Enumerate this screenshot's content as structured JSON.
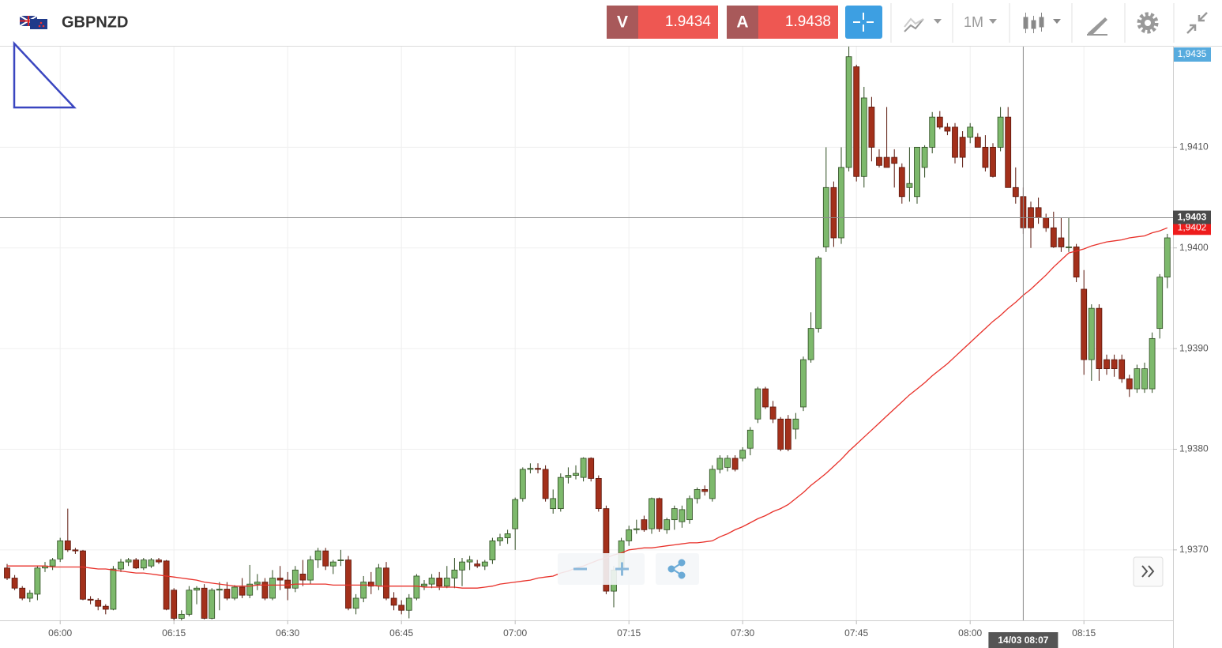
{
  "header": {
    "symbol": "GBPNZD",
    "sell": {
      "label": "V",
      "price": "1.9434"
    },
    "buy": {
      "label": "A",
      "price": "1.9438"
    },
    "timeframe": "1M"
  },
  "chart_data": {
    "type": "candlestick",
    "categories": [
      null,
      null,
      null,
      null,
      null,
      null,
      null,
      "06:00",
      null,
      null,
      null,
      null,
      null,
      null,
      null,
      null,
      null,
      null,
      null,
      null,
      null,
      null,
      "06:15",
      null,
      null,
      null,
      null,
      null,
      null,
      null,
      null,
      null,
      null,
      null,
      null,
      null,
      null,
      "06:30",
      null,
      null,
      null,
      null,
      null,
      null,
      null,
      null,
      null,
      null,
      null,
      null,
      null,
      null,
      "06:45",
      null,
      null,
      null,
      null,
      null,
      null,
      null,
      null,
      null,
      null,
      null,
      null,
      null,
      null,
      "07:00",
      null,
      null,
      null,
      null,
      null,
      null,
      null,
      null,
      null,
      null,
      null,
      null,
      null,
      null,
      "07:15",
      null,
      null,
      null,
      null,
      null,
      null,
      null,
      null,
      null,
      null,
      null,
      null,
      null,
      null,
      "07:30",
      null,
      null,
      null,
      null,
      null,
      null,
      null,
      null,
      null,
      null,
      null,
      null,
      null,
      null,
      "07:45",
      null,
      null,
      null,
      null,
      null,
      null,
      null,
      null,
      null,
      null,
      null,
      null,
      null,
      null,
      "08:00",
      null,
      null,
      null,
      null,
      null,
      null,
      null,
      null,
      null,
      null,
      null,
      null,
      null,
      null,
      "08:15",
      null,
      null,
      null,
      null,
      null,
      null,
      null,
      null,
      null,
      null,
      null
    ],
    "open": [
      1.93682,
      1.93672,
      1.93662,
      1.93652,
      1.93656,
      1.93682,
      1.93684,
      1.93691,
      1.93709,
      1.937,
      1.93699,
      1.93651,
      1.9365,
      1.93644,
      1.93641,
      1.93681,
      1.93688,
      1.9369,
      1.93682,
      1.93684,
      1.9369,
      1.93689,
      1.9366,
      1.93632,
      1.93636,
      1.9366,
      1.93662,
      1.93632,
      1.9366,
      1.93661,
      1.93652,
      1.93663,
      1.93655,
      1.93666,
      1.93668,
      1.93652,
      1.93672,
      1.9367,
      1.93662,
      1.93676,
      1.9367,
      1.9369,
      1.93699,
      1.93684,
      1.9369,
      1.9369,
      1.93642,
      1.93652,
      1.93668,
      1.93664,
      1.93682,
      1.93652,
      1.93645,
      1.9364,
      1.93652,
      1.93664,
      1.93666,
      1.93672,
      1.93664,
      1.93672,
      1.9368,
      1.93688,
      1.93686,
      1.93684,
      1.9369,
      1.93709,
      1.93712,
      1.93721,
      1.93751,
      1.9378,
      1.93781,
      1.9378,
      1.93741,
      1.93741,
      1.93772,
      1.93774,
      1.93772,
      1.93791,
      1.93771,
      1.93741,
      1.93659,
      1.9368,
      1.93709,
      1.9372,
      1.9373,
      1.93721,
      1.93751,
      1.9372,
      1.9373,
      1.93728,
      1.9373,
      1.93751,
      1.9376,
      1.93751,
      1.9378,
      1.93782,
      1.93791,
      1.93791,
      1.93801,
      1.9383,
      1.9386,
      1.93842,
      1.9383,
      1.9383,
      1.9382,
      1.93842,
      1.93889,
      1.9392,
      1.94001,
      1.9406,
      1.9401,
      1.9408,
      1.9418,
      1.94071,
      1.9414,
      1.9409,
      1.9409,
      1.9409,
      1.9408,
      1.9406,
      1.94051,
      1.9408,
      1.941,
      1.9413,
      1.9412,
      1.9412,
      1.9411,
      1.9411,
      1.9411,
      1.941,
      1.941,
      1.941,
      1.9413,
      1.9406,
      1.94051,
      1.9404,
      1.9404,
      1.9403,
      1.9402,
      1.9401,
      1.94001,
      1.94001,
      1.93959,
      1.93889,
      1.9394,
      1.93889,
      1.93889,
      1.93889,
      1.9387,
      1.9386,
      1.9386,
      1.9386,
      1.9392,
      1.93971
    ],
    "high": [
      1.93686,
      1.93675,
      1.93664,
      1.9366,
      1.93684,
      1.93688,
      1.93692,
      1.93712,
      1.93741,
      1.93702,
      1.937,
      1.93654,
      1.93652,
      1.93646,
      1.93684,
      1.93691,
      1.93692,
      1.93692,
      1.93692,
      1.93692,
      1.93692,
      1.9369,
      1.93662,
      1.9364,
      1.93664,
      1.93664,
      1.93666,
      1.93662,
      1.93668,
      1.93668,
      1.93665,
      1.93672,
      1.93685,
      1.93676,
      1.93672,
      1.9368,
      1.93684,
      1.93678,
      1.93684,
      1.9369,
      1.93694,
      1.93702,
      1.93702,
      1.9369,
      1.937,
      1.93694,
      1.93656,
      1.93674,
      1.93678,
      1.93686,
      1.93688,
      1.93658,
      1.9365,
      1.93656,
      1.93676,
      1.9367,
      1.93676,
      1.93678,
      1.93684,
      1.93692,
      1.93692,
      1.93694,
      1.9369,
      1.9369,
      1.93712,
      1.93716,
      1.9372,
      1.93752,
      1.93782,
      1.93786,
      1.93786,
      1.93784,
      1.9376,
      1.93776,
      1.93782,
      1.93784,
      1.93792,
      1.93792,
      1.93774,
      1.93744,
      1.93684,
      1.93712,
      1.93724,
      1.9373,
      1.93734,
      1.93752,
      1.93752,
      1.93732,
      1.93744,
      1.93744,
      1.93754,
      1.93762,
      1.93764,
      1.93784,
      1.93794,
      1.93794,
      1.93794,
      1.93802,
      1.93822,
      1.93862,
      1.93862,
      1.93848,
      1.93832,
      1.93834,
      1.93836,
      1.93892,
      1.93936,
      1.93992,
      1.941,
      1.94066,
      1.941,
      1.942,
      1.94182,
      1.9416,
      1.9415,
      1.94098,
      1.9414,
      1.94098,
      1.94084,
      1.941,
      1.941,
      1.94102,
      1.94135,
      1.94136,
      1.94124,
      1.94124,
      1.94116,
      1.94124,
      1.94114,
      1.94112,
      1.94104,
      1.9414,
      1.9414,
      1.9408,
      1.9406,
      1.94046,
      1.9405,
      1.94034,
      1.94036,
      1.9403,
      1.9403,
      1.94004,
      1.93978,
      1.93944,
      1.93944,
      1.93894,
      1.93894,
      1.93894,
      1.93874,
      1.93884,
      1.93886,
      1.93916,
      1.93974,
      1.94014
    ],
    "low": [
      1.9367,
      1.9366,
      1.9365,
      1.93648,
      1.9365,
      1.93678,
      1.9368,
      1.93688,
      1.93698,
      1.93696,
      1.9365,
      1.93646,
      1.9364,
      1.93636,
      1.9364,
      1.93678,
      1.93684,
      1.93681,
      1.9368,
      1.93682,
      1.93686,
      1.9364,
      1.9363,
      1.9363,
      1.93634,
      1.93646,
      1.93631,
      1.93631,
      1.9364,
      1.9365,
      1.9365,
      1.93652,
      1.93652,
      1.9366,
      1.9365,
      1.9365,
      1.9366,
      1.9365,
      1.93658,
      1.93664,
      1.93666,
      1.93682,
      1.9368,
      1.93676,
      1.93684,
      1.9364,
      1.93636,
      1.93648,
      1.93656,
      1.9366,
      1.9365,
      1.9364,
      1.93636,
      1.93632,
      1.9365,
      1.9366,
      1.93662,
      1.9366,
      1.93662,
      1.93662,
      1.93664,
      1.9368,
      1.93682,
      1.9368,
      1.93686,
      1.93704,
      1.93706,
      1.937,
      1.93748,
      1.93776,
      1.93776,
      1.93748,
      1.93736,
      1.93738,
      1.93766,
      1.9377,
      1.93768,
      1.93768,
      1.93738,
      1.93656,
      1.93643,
      1.93676,
      1.93704,
      1.93716,
      1.93718,
      1.93716,
      1.93718,
      1.93716,
      1.9372,
      1.93722,
      1.93726,
      1.93746,
      1.93754,
      1.93748,
      1.93776,
      1.93778,
      1.93778,
      1.93788,
      1.93794,
      1.93826,
      1.9384,
      1.93826,
      1.93798,
      1.93798,
      1.9381,
      1.93838,
      1.93886,
      1.93916,
      1.93996,
      1.94001,
      1.94004,
      1.94076,
      1.94066,
      1.9406,
      1.94086,
      1.9408,
      1.9408,
      1.9406,
      1.94044,
      1.94046,
      1.94044,
      1.9407,
      1.94094,
      1.94118,
      1.94112,
      1.94084,
      1.9408,
      1.94104,
      1.941,
      1.94076,
      1.9407,
      1.94096,
      1.9406,
      1.94044,
      1.94014,
      1.94,
      1.94024,
      1.94016,
      1.94,
      1.93996,
      1.93996,
      1.93966,
      1.93874,
      1.93868,
      1.93868,
      1.93874,
      1.93872,
      1.93866,
      1.93852,
      1.93856,
      1.93856,
      1.93856,
      1.9391,
      1.9396
    ],
    "close": [
      1.93672,
      1.93662,
      1.93652,
      1.93657,
      1.93682,
      1.93684,
      1.9369,
      1.93709,
      1.937,
      1.93699,
      1.93651,
      1.9365,
      1.93644,
      1.93641,
      1.93681,
      1.93688,
      1.9369,
      1.93682,
      1.9369,
      1.9369,
      1.93688,
      1.93641,
      1.93632,
      1.93636,
      1.9366,
      1.93662,
      1.93632,
      1.9366,
      1.93661,
      1.93652,
      1.93663,
      1.93655,
      1.93666,
      1.93668,
      1.93652,
      1.93672,
      1.9367,
      1.93662,
      1.9368,
      1.9367,
      1.9369,
      1.93699,
      1.93684,
      1.93688,
      1.9369,
      1.93642,
      1.93652,
      1.93668,
      1.93664,
      1.93682,
      1.93652,
      1.93645,
      1.9364,
      1.93652,
      1.93674,
      1.93666,
      1.93672,
      1.93664,
      1.93672,
      1.9368,
      1.93688,
      1.9369,
      1.93684,
      1.93688,
      1.93709,
      1.93712,
      1.93716,
      1.9375,
      1.9378,
      1.93781,
      1.9378,
      1.93751,
      1.93751,
      1.93772,
      1.93774,
      1.93776,
      1.93791,
      1.93771,
      1.93741,
      1.93659,
      1.9368,
      1.93709,
      1.9372,
      1.93721,
      1.9372,
      1.93751,
      1.93721,
      1.9373,
      1.93741,
      1.9374,
      1.93751,
      1.9376,
      1.93758,
      1.9378,
      1.93791,
      1.93791,
      1.9378,
      1.93799,
      1.93819,
      1.9386,
      1.93842,
      1.9383,
      1.938,
      1.938,
      1.9383,
      1.93889,
      1.9392,
      1.9399,
      1.9406,
      1.9401,
      1.9408,
      1.9419,
      1.94071,
      1.94149,
      1.941,
      1.94082,
      1.9408,
      1.94084,
      1.94051,
      1.94064,
      1.941,
      1.941,
      1.9413,
      1.9412,
      1.94116,
      1.9409,
      1.9409,
      1.9412,
      1.941,
      1.9408,
      1.94071,
      1.9413,
      1.9406,
      1.94051,
      1.9402,
      1.9402,
      1.9403,
      1.9402,
      1.94001,
      1.94001,
      1.94001,
      1.93971,
      1.93889,
      1.9394,
      1.9388,
      1.9388,
      1.9388,
      1.9387,
      1.9386,
      1.9388,
      1.9388,
      1.9391,
      1.93971,
      1.9401
    ],
    "up_color": "#7db96c",
    "down_color": "#a3301b",
    "ma": {
      "color": "#e8312a",
      "values": [
        1.93684,
        1.93684,
        1.93684,
        1.93684,
        1.93684,
        1.93684,
        1.93683,
        1.93683,
        1.93683,
        1.93683,
        1.93683,
        1.93682,
        1.93681,
        1.93681,
        1.9368,
        1.93679,
        1.93678,
        1.93677,
        1.93677,
        1.93676,
        1.93675,
        1.93674,
        1.93673,
        1.93672,
        1.93671,
        1.9367,
        1.93668,
        1.93667,
        1.93666,
        1.93665,
        1.93664,
        1.93664,
        1.93664,
        1.93665,
        1.93665,
        1.93665,
        1.93665,
        1.93665,
        1.93666,
        1.93666,
        1.93666,
        1.93666,
        1.93666,
        1.93665,
        1.93665,
        1.93665,
        1.93665,
        1.93665,
        1.93665,
        1.93664,
        1.93664,
        1.93664,
        1.93664,
        1.93664,
        1.93664,
        1.93663,
        1.93663,
        1.93663,
        1.93663,
        1.93663,
        1.93662,
        1.93662,
        1.93662,
        1.93663,
        1.93664,
        1.93666,
        1.93667,
        1.93668,
        1.93669,
        1.9367,
        1.93672,
        1.93673,
        1.93674,
        1.93677,
        1.93679,
        1.93682,
        1.93684,
        1.93687,
        1.9369,
        1.93692,
        1.93695,
        1.93697,
        1.937,
        1.93701,
        1.93702,
        1.93702,
        1.93703,
        1.93704,
        1.93705,
        1.93706,
        1.93707,
        1.93707,
        1.93708,
        1.93709,
        1.93713,
        1.93716,
        1.9372,
        1.93723,
        1.93727,
        1.93731,
        1.93734,
        1.93738,
        1.93741,
        1.93745,
        1.93751,
        1.93757,
        1.93764,
        1.9377,
        1.93776,
        1.93783,
        1.9379,
        1.93798,
        1.93805,
        1.93812,
        1.93819,
        1.93826,
        1.93833,
        1.9384,
        1.93847,
        1.93854,
        1.9386,
        1.93866,
        1.93873,
        1.93879,
        1.93885,
        1.93892,
        1.93899,
        1.93906,
        1.93913,
        1.9392,
        1.93927,
        1.93933,
        1.9394,
        1.93946,
        1.93953,
        1.93959,
        1.93966,
        1.93973,
        1.93981,
        1.93988,
        1.93995,
        1.93997,
        1.93999,
        1.94002,
        1.94004,
        1.94006,
        1.94007,
        1.94008,
        1.9401,
        1.94011,
        1.94012,
        1.94015,
        1.94017,
        1.9402
      ]
    },
    "ma_tag": {
      "value": 1.9402,
      "label": "1,9402"
    },
    "top_tag": "1,9435",
    "crosshair": {
      "time": "14/03 08:07",
      "price": {
        "value": 1.9403,
        "label": "1,9403"
      }
    },
    "ylim": [
      1.9363,
      1.942
    ],
    "yticks": [
      {
        "value": 1.937,
        "label": "1,9370"
      },
      {
        "value": 1.938,
        "label": "1,9380"
      },
      {
        "value": 1.939,
        "label": "1,9390"
      },
      {
        "value": 1.94,
        "label": "1,9400"
      },
      {
        "value": 1.941,
        "label": "1,9410"
      }
    ],
    "grid": true
  }
}
